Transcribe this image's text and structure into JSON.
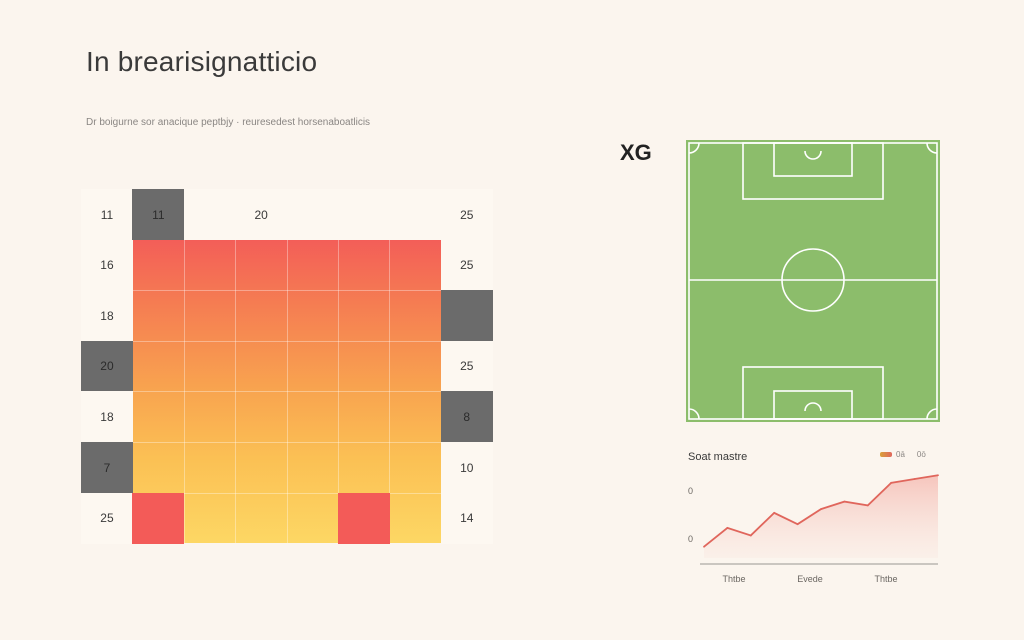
{
  "page": {
    "title": "In brearisignatticio",
    "subtitle": "Dr boigurne sor anacique peptbjy · reuresedest horsenaboatlicis"
  },
  "colors": {
    "background": "#fbf5ee",
    "heat_high": "#f35e58",
    "heat_low": "#fdd764",
    "grey_cell": "#6b6b6b",
    "pitch_green": "#8cbd6b",
    "line": "#e0665c"
  },
  "chart_data": [
    {
      "type": "heatmap",
      "rows": 7,
      "cols": 8,
      "cells": [
        {
          "row": 0,
          "col": 0,
          "text": "11",
          "style": "plain"
        },
        {
          "row": 0,
          "col": 1,
          "text": "11",
          "style": "grey"
        },
        {
          "row": 0,
          "col": 2,
          "text": "",
          "style": "plain"
        },
        {
          "row": 0,
          "col": 3,
          "text": "20",
          "style": "plain"
        },
        {
          "row": 0,
          "col": 4,
          "text": "",
          "style": "plain"
        },
        {
          "row": 0,
          "col": 5,
          "text": "",
          "style": "plain"
        },
        {
          "row": 0,
          "col": 6,
          "text": "",
          "style": "plain"
        },
        {
          "row": 0,
          "col": 7,
          "text": "25",
          "style": "plain"
        },
        {
          "row": 1,
          "col": 0,
          "text": "16",
          "style": "plain"
        },
        {
          "row": 1,
          "col": 7,
          "text": "25",
          "style": "plain"
        },
        {
          "row": 2,
          "col": 0,
          "text": "18",
          "style": "plain"
        },
        {
          "row": 2,
          "col": 7,
          "text": "",
          "style": "grey"
        },
        {
          "row": 3,
          "col": 0,
          "text": "20",
          "style": "grey"
        },
        {
          "row": 3,
          "col": 7,
          "text": "25",
          "style": "plain"
        },
        {
          "row": 4,
          "col": 0,
          "text": "18",
          "style": "plain"
        },
        {
          "row": 4,
          "col": 7,
          "text": "8",
          "style": "grey"
        },
        {
          "row": 5,
          "col": 0,
          "text": "7",
          "style": "grey"
        },
        {
          "row": 5,
          "col": 7,
          "text": "10",
          "style": "plain"
        },
        {
          "row": 6,
          "col": 0,
          "text": "25",
          "style": "plain"
        },
        {
          "row": 6,
          "col": 1,
          "text": "",
          "style": "red"
        },
        {
          "row": 6,
          "col": 5,
          "text": "",
          "style": "red"
        },
        {
          "row": 6,
          "col": 7,
          "text": "14",
          "style": "plain"
        }
      ]
    },
    {
      "type": "pitch",
      "title": "XG"
    },
    {
      "type": "line",
      "title": "Soat mastre",
      "legend": [
        "0ā",
        "0ō"
      ],
      "y_ticks": [
        "0",
        "0"
      ],
      "x_ticks": [
        "Thtbe",
        "Evede",
        "Thtbe"
      ],
      "x": [
        0,
        1,
        2,
        3,
        4,
        5,
        6,
        7,
        8,
        9,
        10
      ],
      "values": [
        3,
        8,
        6,
        12,
        9,
        13,
        15,
        14,
        20,
        21,
        22
      ],
      "ylim": [
        0,
        25
      ]
    }
  ]
}
